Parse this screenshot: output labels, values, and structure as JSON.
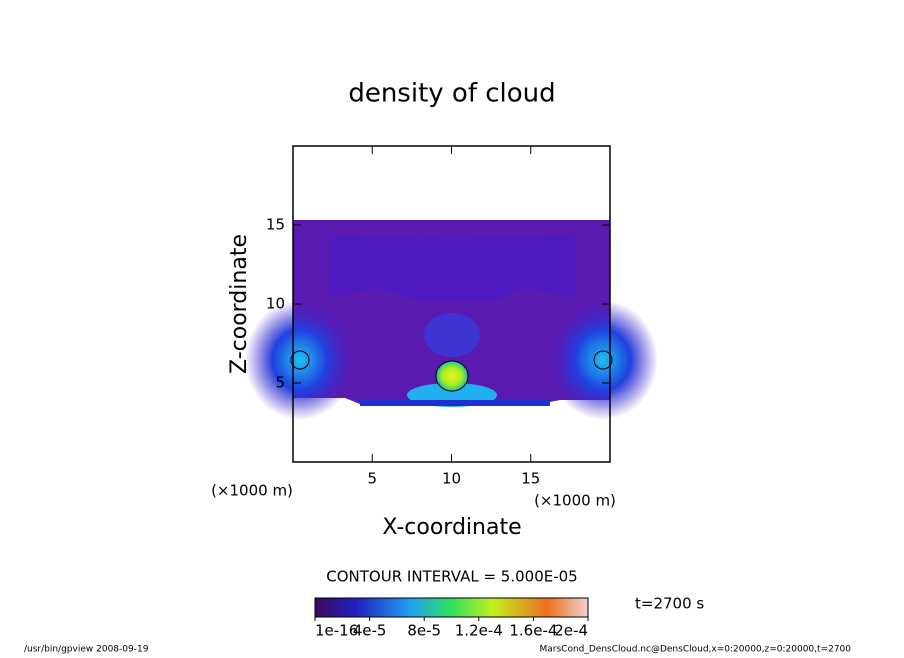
{
  "chart_data": {
    "type": "contour",
    "title": "density of cloud",
    "x_label": "X-coordinate",
    "y_label": "Z-coordinate",
    "x_unit": "(×1000 m)",
    "y_unit": "(×1000 m)",
    "xlim": [
      0,
      20
    ],
    "ylim": [
      0,
      20
    ],
    "xticks": [
      5,
      10,
      15
    ],
    "yticks": [
      5,
      10,
      15
    ],
    "contour_interval": "CONTOUR INTERVAL = 5.000E-05",
    "time_label": "t=2700 s",
    "colorbar_ticks": [
      {
        "value": 1e-16,
        "label": "1e-16"
      },
      {
        "value": 4e-05,
        "label": "4e-5"
      },
      {
        "value": 8e-05,
        "label": "8e-5"
      },
      {
        "value": 0.00012,
        "label": "1.2e-4"
      },
      {
        "value": 0.00016,
        "label": "1.6e-4"
      },
      {
        "value": 0.0002,
        "label": "2e-4"
      }
    ],
    "footer_left": "/usr/bin/gpview   2008-09-19",
    "footer_right": "MarsCond_DensCloud.nc@DensCloud,x=0:20000,z=0:20000,t=2700"
  }
}
